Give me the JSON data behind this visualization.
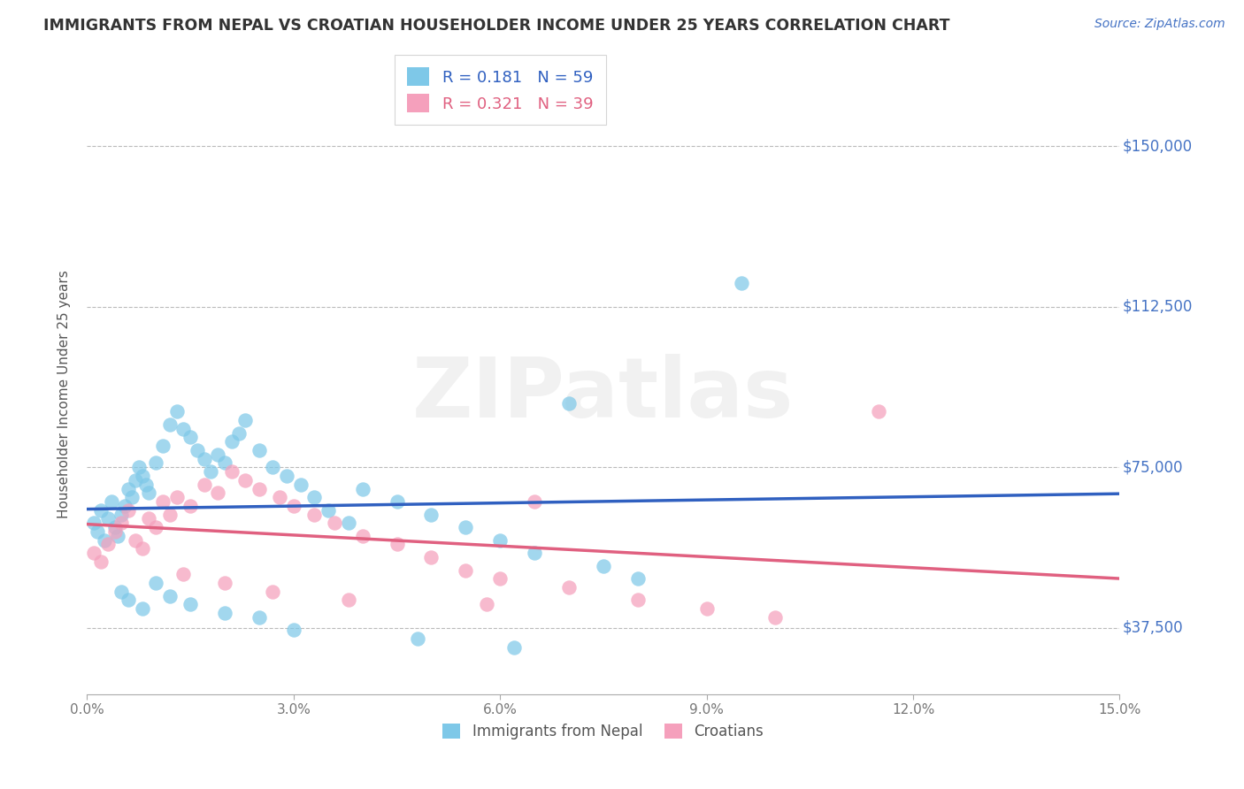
{
  "title": "IMMIGRANTS FROM NEPAL VS CROATIAN HOUSEHOLDER INCOME UNDER 25 YEARS CORRELATION CHART",
  "source_text": "Source: ZipAtlas.com",
  "ylabel": "Householder Income Under 25 years",
  "ytick_vals": [
    37500,
    75000,
    112500,
    150000
  ],
  "ytick_labels": [
    "$37,500",
    "$75,000",
    "$112,500",
    "$150,000"
  ],
  "xtick_vals": [
    0.0,
    3.0,
    6.0,
    9.0,
    12.0,
    15.0
  ],
  "xtick_labels": [
    "0.0%",
    "3.0%",
    "6.0%",
    "9.0%",
    "12.0%",
    "15.0%"
  ],
  "xlim": [
    0.0,
    15.0
  ],
  "ylim": [
    22000,
    162000
  ],
  "nepal_R": "0.181",
  "nepal_N": "59",
  "croatian_R": "0.321",
  "croatian_N": "39",
  "nepal_color": "#7EC8E8",
  "croatian_color": "#F5A0BC",
  "nepal_line_color": "#3060C0",
  "croatian_line_color": "#E06080",
  "legend_label_nepal": "Immigrants from Nepal",
  "legend_label_croatian": "Croatians",
  "watermark": "ZIPatlas",
  "nepal_x": [
    0.1,
    0.15,
    0.2,
    0.25,
    0.3,
    0.35,
    0.4,
    0.45,
    0.5,
    0.55,
    0.6,
    0.65,
    0.7,
    0.75,
    0.8,
    0.85,
    0.9,
    1.0,
    1.1,
    1.2,
    1.3,
    1.4,
    1.5,
    1.6,
    1.7,
    1.8,
    1.9,
    2.0,
    2.1,
    2.2,
    2.3,
    2.5,
    2.7,
    2.9,
    3.1,
    3.3,
    3.5,
    3.8,
    4.0,
    4.5,
    5.0,
    5.5,
    6.0,
    6.5,
    7.0,
    7.5,
    8.0,
    9.5,
    0.5,
    0.6,
    0.8,
    1.0,
    1.2,
    1.5,
    2.0,
    2.5,
    3.0,
    4.8,
    6.2
  ],
  "nepal_y": [
    62000,
    60000,
    65000,
    58000,
    63000,
    67000,
    61000,
    59000,
    64000,
    66000,
    70000,
    68000,
    72000,
    75000,
    73000,
    71000,
    69000,
    76000,
    80000,
    85000,
    88000,
    84000,
    82000,
    79000,
    77000,
    74000,
    78000,
    76000,
    81000,
    83000,
    86000,
    79000,
    75000,
    73000,
    71000,
    68000,
    65000,
    62000,
    70000,
    67000,
    64000,
    61000,
    58000,
    55000,
    90000,
    52000,
    49000,
    118000,
    46000,
    44000,
    42000,
    48000,
    45000,
    43000,
    41000,
    40000,
    37000,
    35000,
    33000
  ],
  "croatian_x": [
    0.1,
    0.2,
    0.3,
    0.4,
    0.5,
    0.6,
    0.7,
    0.8,
    0.9,
    1.0,
    1.1,
    1.2,
    1.3,
    1.5,
    1.7,
    1.9,
    2.1,
    2.3,
    2.5,
    2.8,
    3.0,
    3.3,
    3.6,
    4.0,
    4.5,
    5.0,
    5.5,
    6.0,
    7.0,
    8.0,
    9.0,
    10.0,
    1.4,
    2.0,
    2.7,
    3.8,
    5.8,
    11.5,
    6.5
  ],
  "croatian_y": [
    55000,
    53000,
    57000,
    60000,
    62000,
    65000,
    58000,
    56000,
    63000,
    61000,
    67000,
    64000,
    68000,
    66000,
    71000,
    69000,
    74000,
    72000,
    70000,
    68000,
    66000,
    64000,
    62000,
    59000,
    57000,
    54000,
    51000,
    49000,
    47000,
    44000,
    42000,
    40000,
    50000,
    48000,
    46000,
    44000,
    43000,
    88000,
    67000
  ]
}
